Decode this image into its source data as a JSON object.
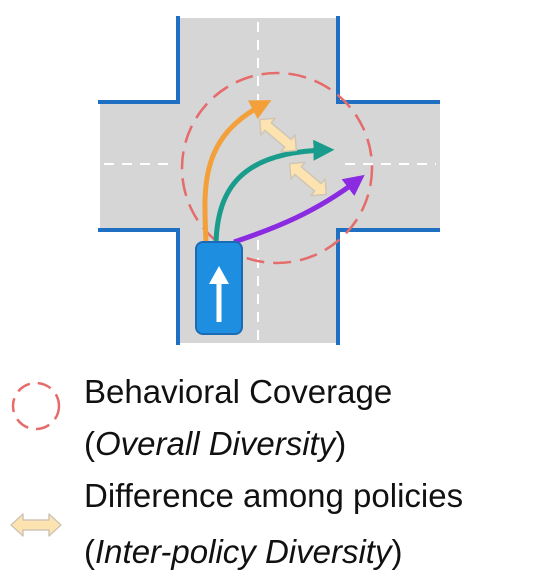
{
  "colors": {
    "road": "#d6d6d6",
    "curb": "#1f6fc2",
    "lane_marking": "#ffffff",
    "coverage_circle": "#e66b6b",
    "car_body": "#1e8fe0",
    "car_outline": "#1a6bb3",
    "arrow_orange": "#f4a03a",
    "arrow_teal": "#1a9c8c",
    "arrow_purple": "#8a2be2",
    "difference_arrow_fill": "#fde3b0",
    "difference_arrow_stroke": "#cfc6b6"
  },
  "icons": {
    "coverage": "dashed-circle-icon",
    "difference": "double-headed-arrow-icon",
    "car": "car-icon"
  },
  "legend": {
    "coverage": {
      "title": "Behavioral Coverage",
      "paren_open": "(",
      "italic": "Overall Diversity",
      "paren_close": ")"
    },
    "difference": {
      "title": "Difference among policies",
      "paren_open": "(",
      "italic": "Inter-policy Diversity",
      "paren_close": ")"
    }
  }
}
